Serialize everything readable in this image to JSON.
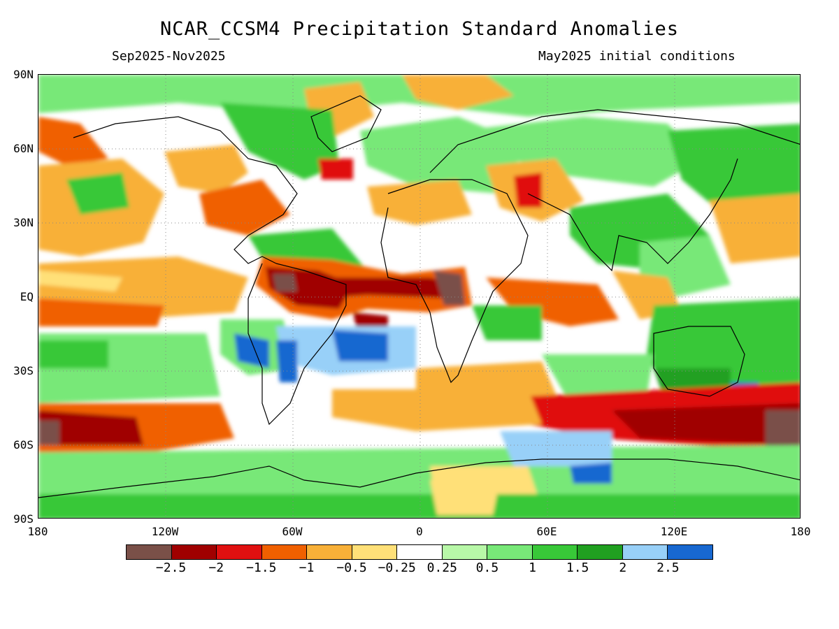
{
  "title": "NCAR_CCSM4 Precipitation Standard Anomalies",
  "season": "Sep2025-Nov2025",
  "init": "May2025 initial conditions",
  "lat_labels": [
    "90N",
    "60N",
    "30N",
    "EQ",
    "30S",
    "60S",
    "90S"
  ],
  "lon_labels": [
    "180",
    "120W",
    "60W",
    "0",
    "60E",
    "120E",
    "180"
  ],
  "colorbar": {
    "colors": [
      "#7a5048",
      "#a00000",
      "#e01010",
      "#f06000",
      "#f8b038",
      "#ffe078",
      "#ffffff",
      "#b8f8a8",
      "#78e878",
      "#38c838",
      "#20a020",
      "#98d0f8",
      "#1868d0"
    ],
    "labels": [
      "−2.5",
      "−2",
      "−1.5",
      "−1",
      "−0.5",
      "−0.25",
      "0.25",
      "0.5",
      "1",
      "1.5",
      "2",
      "2.5"
    ]
  }
}
